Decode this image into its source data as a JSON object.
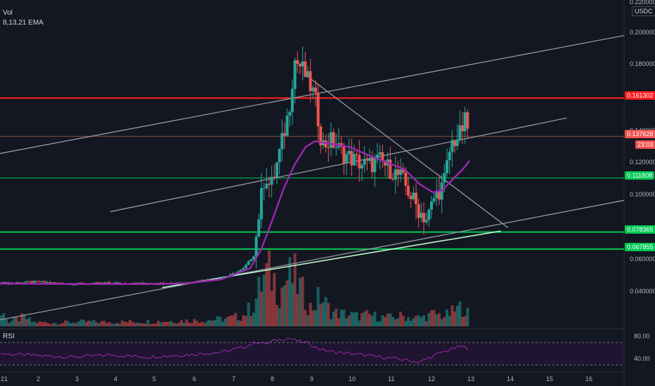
{
  "header": {
    "indicator_vol": "Vol",
    "indicator_ema": "8,13,21 EMA",
    "currency": "USDC"
  },
  "rsi": {
    "label": "RSI",
    "levels": [
      "80.00",
      "40.00"
    ]
  },
  "price_axis": {
    "ticks": [
      "0.220000",
      "0.200000",
      "0.180000",
      "0.140000",
      "0.120000",
      "0.100000",
      "0.060000",
      "0.040000"
    ]
  },
  "time_axis": {
    "ticks": [
      "21",
      "2",
      "3",
      "4",
      "5",
      "6",
      "7",
      "8",
      "9",
      "10",
      "11",
      "12",
      "13",
      "14",
      "15",
      "16"
    ]
  },
  "tags": {
    "red_level": "0.161302",
    "last_price": "0.137628",
    "countdown": "23:03",
    "green_1": "0.111808",
    "green_2": "0.078365",
    "green_3": "0.067855"
  },
  "colors": {
    "background": "#131722",
    "bull": "#26a69a",
    "bear": "#ef5350",
    "ema": "#9c27b0",
    "resistance": "#ff1f1f",
    "support": "#00c853",
    "trend": "#9598a1"
  },
  "chart_data": {
    "type": "candlestick",
    "symbol_quote": "USDC",
    "y_range": [
      0.02,
      0.222
    ],
    "x_range": [
      0.0,
      16.95
    ],
    "horizontal_levels": [
      {
        "value": 0.161302,
        "color": "red"
      },
      {
        "value": 0.137628,
        "color": "orange-thin"
      },
      {
        "value": 0.111808,
        "color": "green-thin"
      },
      {
        "value": 0.078365,
        "color": "green"
      },
      {
        "value": 0.067855,
        "color": "green"
      }
    ],
    "trend_lines": [
      {
        "from": [
          0.0,
          0.024
        ],
        "to": [
          16.95,
          0.098
        ],
        "color": "grey"
      },
      {
        "from": [
          0.0,
          0.127
        ],
        "to": [
          16.95,
          0.2
        ],
        "color": "grey"
      },
      {
        "from": [
          3.0,
          0.091
        ],
        "to": [
          15.4,
          0.149
        ],
        "color": "grey"
      },
      {
        "from": [
          8.45,
          0.173
        ],
        "to": [
          13.8,
          0.081
        ],
        "color": "grey"
      },
      {
        "from": [
          4.4,
          0.044
        ],
        "to": [
          13.6,
          0.079
        ],
        "color": "lightgreen"
      }
    ],
    "price_path": [
      [
        0.0,
        0.0468
      ],
      [
        1.0,
        0.0475
      ],
      [
        2.0,
        0.0462
      ],
      [
        3.0,
        0.0468
      ],
      [
        4.0,
        0.0465
      ],
      [
        5.0,
        0.047
      ],
      [
        5.6,
        0.0485
      ],
      [
        6.2,
        0.051
      ],
      [
        6.6,
        0.0555
      ],
      [
        6.9,
        0.064
      ],
      [
        7.05,
        0.093
      ],
      [
        7.2,
        0.115
      ],
      [
        7.35,
        0.105
      ],
      [
        7.6,
        0.128
      ],
      [
        7.85,
        0.154
      ],
      [
        8.0,
        0.185
      ],
      [
        8.2,
        0.18
      ],
      [
        8.4,
        0.17
      ],
      [
        8.55,
        0.162
      ],
      [
        8.75,
        0.132
      ],
      [
        9.0,
        0.135
      ],
      [
        9.3,
        0.127
      ],
      [
        9.7,
        0.122
      ],
      [
        10.0,
        0.119
      ],
      [
        10.3,
        0.123
      ],
      [
        10.6,
        0.117
      ],
      [
        10.9,
        0.112
      ],
      [
        11.2,
        0.099
      ],
      [
        11.4,
        0.091
      ],
      [
        11.6,
        0.086
      ],
      [
        11.8,
        0.1
      ],
      [
        12.05,
        0.108
      ],
      [
        12.25,
        0.133
      ],
      [
        12.5,
        0.139
      ],
      [
        12.65,
        0.148
      ],
      [
        12.75,
        0.1376
      ]
    ],
    "ema_path": [
      [
        0.0,
        0.0465
      ],
      [
        2.0,
        0.0462
      ],
      [
        4.0,
        0.0462
      ],
      [
        5.0,
        0.0465
      ],
      [
        6.0,
        0.049
      ],
      [
        6.8,
        0.056
      ],
      [
        7.1,
        0.068
      ],
      [
        7.4,
        0.086
      ],
      [
        7.7,
        0.105
      ],
      [
        8.0,
        0.12
      ],
      [
        8.3,
        0.131
      ],
      [
        8.55,
        0.1345
      ],
      [
        9.0,
        0.133
      ],
      [
        9.5,
        0.131
      ],
      [
        10.0,
        0.126
      ],
      [
        10.5,
        0.1215
      ],
      [
        11.0,
        0.117
      ],
      [
        11.4,
        0.108
      ],
      [
        11.75,
        0.103
      ],
      [
        12.0,
        0.104
      ],
      [
        12.3,
        0.111
      ],
      [
        12.6,
        0.118
      ],
      [
        12.75,
        0.1225
      ]
    ],
    "volume_bars": [
      [
        0.2,
        0.35
      ],
      [
        0.65,
        0.9
      ],
      [
        0.9,
        0.4
      ],
      [
        1.5,
        0.35
      ],
      [
        2.3,
        0.45
      ],
      [
        3.0,
        0.4
      ],
      [
        3.7,
        0.45
      ],
      [
        4.4,
        0.5
      ],
      [
        5.0,
        0.55
      ],
      [
        5.6,
        0.6
      ],
      [
        6.2,
        0.75
      ],
      [
        6.6,
        1.05
      ],
      [
        6.9,
        2.1
      ],
      [
        7.05,
        3.6
      ],
      [
        7.2,
        4.9
      ],
      [
        7.35,
        5.2
      ],
      [
        7.6,
        3.4
      ],
      [
        7.8,
        4.6
      ],
      [
        8.0,
        4.7
      ],
      [
        8.25,
        3.0
      ],
      [
        8.45,
        1.7
      ],
      [
        8.7,
        2.9
      ],
      [
        9.0,
        1.35
      ],
      [
        9.3,
        1.2
      ],
      [
        9.7,
        1.0
      ],
      [
        10.0,
        1.1
      ],
      [
        10.3,
        0.9
      ],
      [
        10.6,
        0.85
      ],
      [
        10.9,
        1.0
      ],
      [
        11.2,
        0.8
      ],
      [
        11.5,
        0.9
      ],
      [
        11.8,
        1.2
      ],
      [
        12.1,
        1.0
      ],
      [
        12.4,
        1.6
      ],
      [
        12.6,
        2.0
      ],
      [
        12.72,
        1.1
      ]
    ],
    "rsi_path": [
      [
        0.0,
        55
      ],
      [
        1.0,
        52
      ],
      [
        2.0,
        50
      ],
      [
        3.0,
        53
      ],
      [
        4.0,
        50
      ],
      [
        5.0,
        53
      ],
      [
        6.0,
        57
      ],
      [
        6.6,
        64
      ],
      [
        7.0,
        73
      ],
      [
        7.2,
        69
      ],
      [
        7.5,
        75
      ],
      [
        7.85,
        78
      ],
      [
        8.1,
        73
      ],
      [
        8.4,
        70
      ],
      [
        8.6,
        63
      ],
      [
        9.0,
        58
      ],
      [
        9.5,
        55
      ],
      [
        10.0,
        52
      ],
      [
        10.5,
        49
      ],
      [
        11.0,
        46
      ],
      [
        11.4,
        42
      ],
      [
        11.7,
        50
      ],
      [
        12.0,
        57
      ],
      [
        12.3,
        62
      ],
      [
        12.5,
        66
      ],
      [
        12.75,
        62
      ]
    ],
    "rsi_range": [
      30,
      90
    ]
  }
}
